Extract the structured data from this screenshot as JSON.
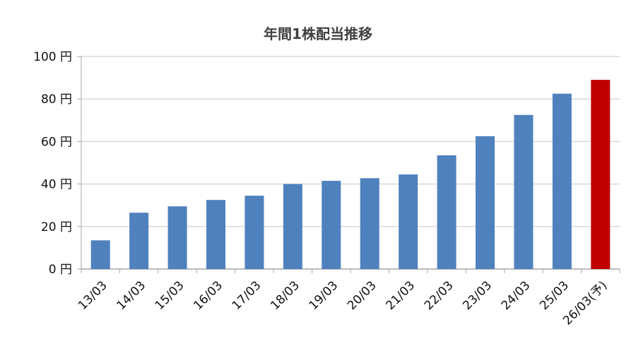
{
  "chart_data": {
    "type": "bar",
    "title": "年間1株配当推移",
    "xlabel": "",
    "ylabel": "",
    "categories": [
      "13/03",
      "14/03",
      "15/03",
      "16/03",
      "17/03",
      "18/03",
      "19/03",
      "20/03",
      "21/03",
      "22/03",
      "23/03",
      "24/03",
      "25/03",
      "26/03(予)"
    ],
    "values": [
      13.5,
      26.5,
      29.5,
      32.5,
      34.5,
      40,
      41.5,
      42.75,
      44.5,
      53.5,
      62.5,
      72.5,
      82.5,
      89
    ],
    "ylim": [
      0,
      100
    ],
    "y_ticks": [
      0,
      20,
      40,
      60,
      80,
      100
    ],
    "y_tick_labels": [
      "0 円",
      "20 円",
      "40 円",
      "60 円",
      "80 円",
      "100 円"
    ],
    "grid": true,
    "legend": "none",
    "colors": {
      "bar": "#4f81bd",
      "forecast_bar": "#c00000",
      "grid": "#d9d9d9",
      "axis": "#a6a6a6"
    }
  }
}
